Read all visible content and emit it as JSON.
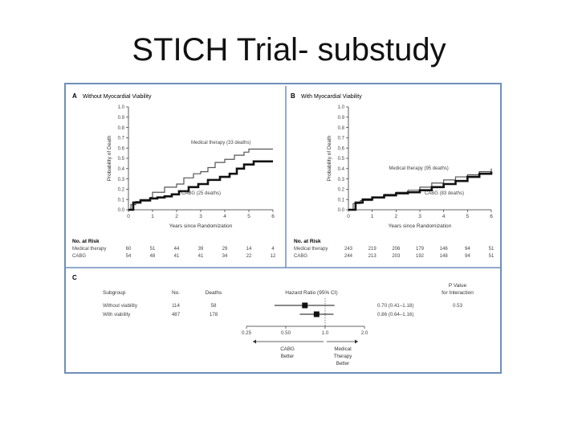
{
  "slide": {
    "title": "STICH Trial- substudy"
  },
  "panels": {
    "a": {
      "letter": "A",
      "title": "Without Myocardial Viability"
    },
    "b": {
      "letter": "B",
      "title": "With Myocardial Viability"
    },
    "c": {
      "letter": "C"
    }
  },
  "risk_table": {
    "heading": "No. at Risk",
    "a": [
      {
        "label": "Medical therapy",
        "values": [
          "60",
          "51",
          "44",
          "39",
          "29",
          "14",
          "4"
        ]
      },
      {
        "label": "CABG",
        "values": [
          "54",
          "48",
          "41",
          "41",
          "34",
          "22",
          "12"
        ]
      }
    ],
    "b": [
      {
        "label": "Medical therapy",
        "values": [
          "243",
          "219",
          "206",
          "179",
          "146",
          "94",
          "51"
        ]
      },
      {
        "label": "CABG",
        "values": [
          "244",
          "213",
          "203",
          "192",
          "148",
          "94",
          "51"
        ]
      }
    ]
  },
  "chart_data": [
    {
      "type": "line",
      "title": "Without Myocardial Viability",
      "xlabel": "Years since Randomization",
      "ylabel": "Probability of Death",
      "xlim": [
        0,
        6
      ],
      "ylim": [
        0,
        1.0
      ],
      "xticks": [
        "0",
        "1",
        "2",
        "3",
        "4",
        "5",
        "6"
      ],
      "yticks": [
        "0.0",
        "0.1",
        "0.2",
        "0.3",
        "0.4",
        "0.5",
        "0.6",
        "0.7",
        "0.8",
        "0.9",
        "1.0"
      ],
      "grid": false,
      "series": [
        {
          "name": "Medical therapy",
          "label": "Medical therapy (33 deaths)",
          "color": "#555555",
          "width": 1.2,
          "label_at": [
            2.6,
            0.64
          ],
          "points": [
            [
              0,
              0
            ],
            [
              0.1,
              0.05
            ],
            [
              0.3,
              0.08
            ],
            [
              0.5,
              0.1
            ],
            [
              0.9,
              0.12
            ],
            [
              1.0,
              0.17
            ],
            [
              1.5,
              0.22
            ],
            [
              2.0,
              0.25
            ],
            [
              2.3,
              0.31
            ],
            [
              2.7,
              0.35
            ],
            [
              3.0,
              0.37
            ],
            [
              3.3,
              0.41
            ],
            [
              3.6,
              0.46
            ],
            [
              4.0,
              0.49
            ],
            [
              4.4,
              0.53
            ],
            [
              4.8,
              0.56
            ],
            [
              5.0,
              0.59
            ],
            [
              5.4,
              0.59
            ],
            [
              6.0,
              0.59
            ]
          ]
        },
        {
          "name": "CABG",
          "label": "CABG (25 deaths)",
          "color": "#111111",
          "width": 2.6,
          "label_at": [
            2.2,
            0.15
          ],
          "points": [
            [
              0,
              0
            ],
            [
              0.2,
              0.07
            ],
            [
              0.5,
              0.09
            ],
            [
              0.9,
              0.11
            ],
            [
              1.2,
              0.12
            ],
            [
              1.5,
              0.13
            ],
            [
              1.8,
              0.15
            ],
            [
              2.1,
              0.18
            ],
            [
              2.5,
              0.22
            ],
            [
              2.9,
              0.25
            ],
            [
              3.3,
              0.29
            ],
            [
              3.8,
              0.32
            ],
            [
              4.2,
              0.35
            ],
            [
              4.5,
              0.4
            ],
            [
              4.8,
              0.44
            ],
            [
              5.2,
              0.47
            ],
            [
              5.6,
              0.47
            ],
            [
              6.0,
              0.47
            ]
          ]
        }
      ]
    },
    {
      "type": "line",
      "title": "With Myocardial Viability",
      "xlabel": "Years since Randomization",
      "ylabel": "Probability of Death",
      "xlim": [
        0,
        6
      ],
      "ylim": [
        0,
        1.0
      ],
      "xticks": [
        "0",
        "1",
        "2",
        "3",
        "4",
        "5",
        "6"
      ],
      "yticks": [
        "0.0",
        "0.1",
        "0.2",
        "0.3",
        "0.4",
        "0.5",
        "0.6",
        "0.7",
        "0.8",
        "0.9",
        "1.0"
      ],
      "grid": false,
      "series": [
        {
          "name": "Medical therapy",
          "label": "Medical therapy (95 deaths)",
          "color": "#555555",
          "width": 1.2,
          "label_at": [
            1.7,
            0.39
          ],
          "points": [
            [
              0,
              0
            ],
            [
              0.2,
              0.06
            ],
            [
              0.5,
              0.09
            ],
            [
              1.0,
              0.12
            ],
            [
              1.5,
              0.15
            ],
            [
              2.0,
              0.17
            ],
            [
              2.5,
              0.19
            ],
            [
              3.0,
              0.22
            ],
            [
              3.5,
              0.26
            ],
            [
              4.0,
              0.29
            ],
            [
              4.5,
              0.32
            ],
            [
              5.0,
              0.34
            ],
            [
              5.5,
              0.37
            ],
            [
              6.0,
              0.4
            ]
          ]
        },
        {
          "name": "CABG",
          "label": "CABG (83 deaths)",
          "color": "#111111",
          "width": 2.6,
          "label_at": [
            3.2,
            0.15
          ],
          "points": [
            [
              0,
              0
            ],
            [
              0.3,
              0.07
            ],
            [
              0.6,
              0.1
            ],
            [
              1.0,
              0.12
            ],
            [
              1.5,
              0.14
            ],
            [
              2.0,
              0.16
            ],
            [
              2.5,
              0.17
            ],
            [
              3.0,
              0.19
            ],
            [
              3.5,
              0.22
            ],
            [
              4.0,
              0.25
            ],
            [
              4.5,
              0.28
            ],
            [
              5.0,
              0.32
            ],
            [
              5.5,
              0.35
            ],
            [
              6.0,
              0.37
            ]
          ]
        }
      ]
    },
    {
      "type": "table",
      "subtype": "forest",
      "columns": [
        "Subgroup",
        "No.",
        "Deaths",
        "Hazard Ratio (95% CI)",
        "P Value for Interaction"
      ],
      "rows": [
        {
          "subgroup": "Without viability",
          "n": "114",
          "deaths": "58",
          "hr": 0.7,
          "lo": 0.41,
          "hi": 1.18,
          "hr_text": "0.70 (0.41–1.18)",
          "p": "0.53"
        },
        {
          "subgroup": "With viability",
          "n": "487",
          "deaths": "178",
          "hr": 0.86,
          "lo": 0.64,
          "hi": 1.16,
          "hr_text": "0.86 (0.64–1.16)",
          "p": ""
        }
      ],
      "xscale": "log",
      "xlim": [
        0.25,
        2.0
      ],
      "xticks": [
        0.25,
        0.5,
        1.0,
        2.0
      ],
      "xtick_labels": [
        "0.25",
        "0.50",
        "1.0",
        "2.0"
      ],
      "left_label": [
        "CABG",
        "Better"
      ],
      "right_label": [
        "Medical",
        "Therapy",
        "Better"
      ]
    }
  ]
}
